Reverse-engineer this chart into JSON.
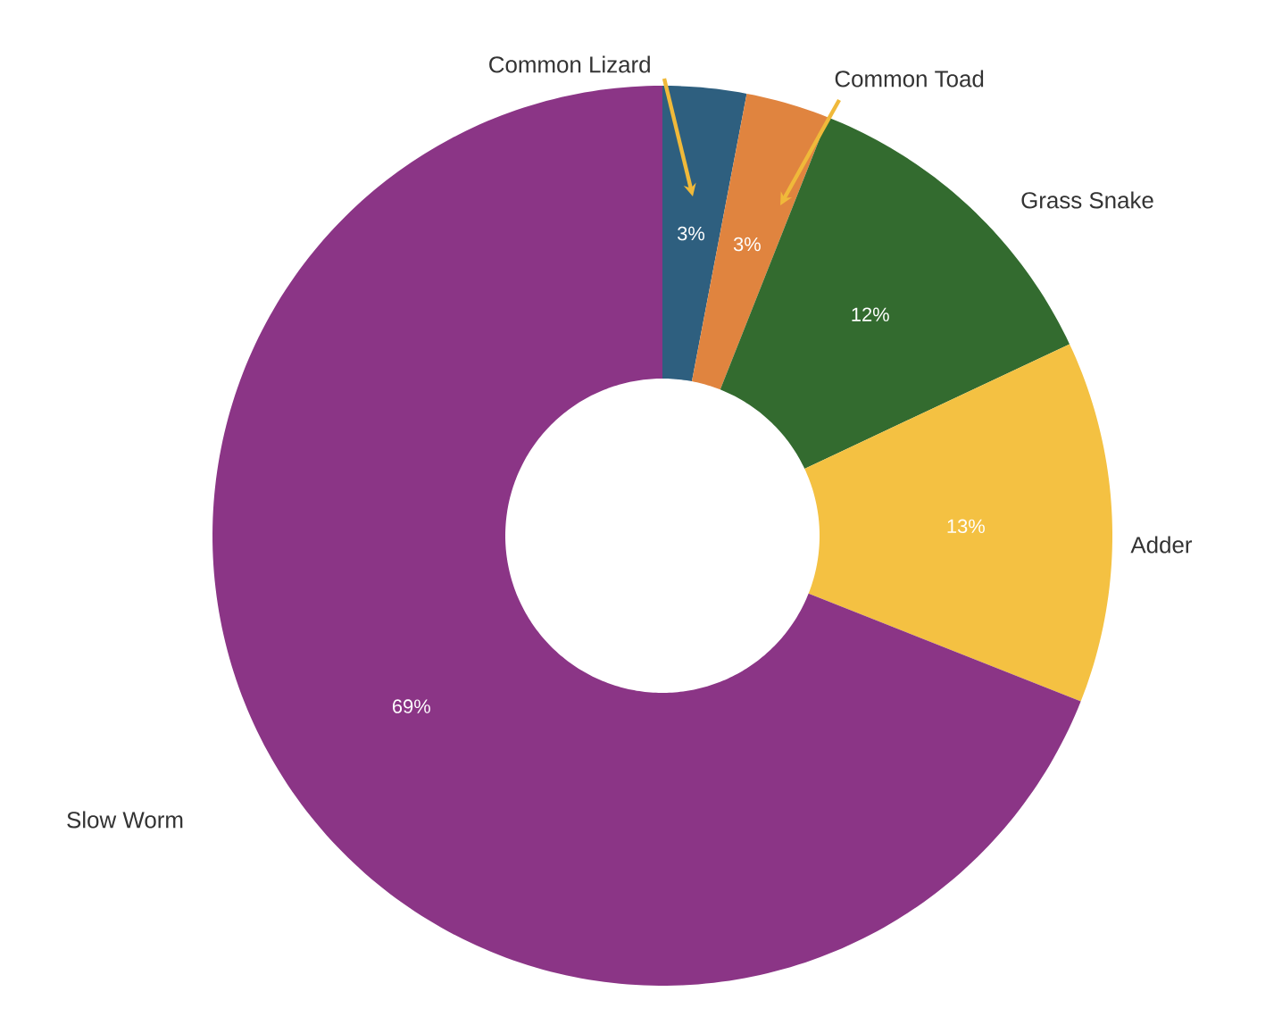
{
  "chart_data": {
    "type": "donut",
    "categories": [
      "Common Lizard",
      "Common Toad",
      "Grass Snake",
      "Adder",
      "Slow Worm"
    ],
    "values": [
      3,
      3,
      12,
      13,
      69
    ],
    "colors": [
      "#2e5f7f",
      "#e0843f",
      "#336b2f",
      "#f4c142",
      "#8b3586"
    ],
    "value_labels": [
      "3%",
      "3%",
      "12%",
      "13%",
      "69%"
    ]
  }
}
